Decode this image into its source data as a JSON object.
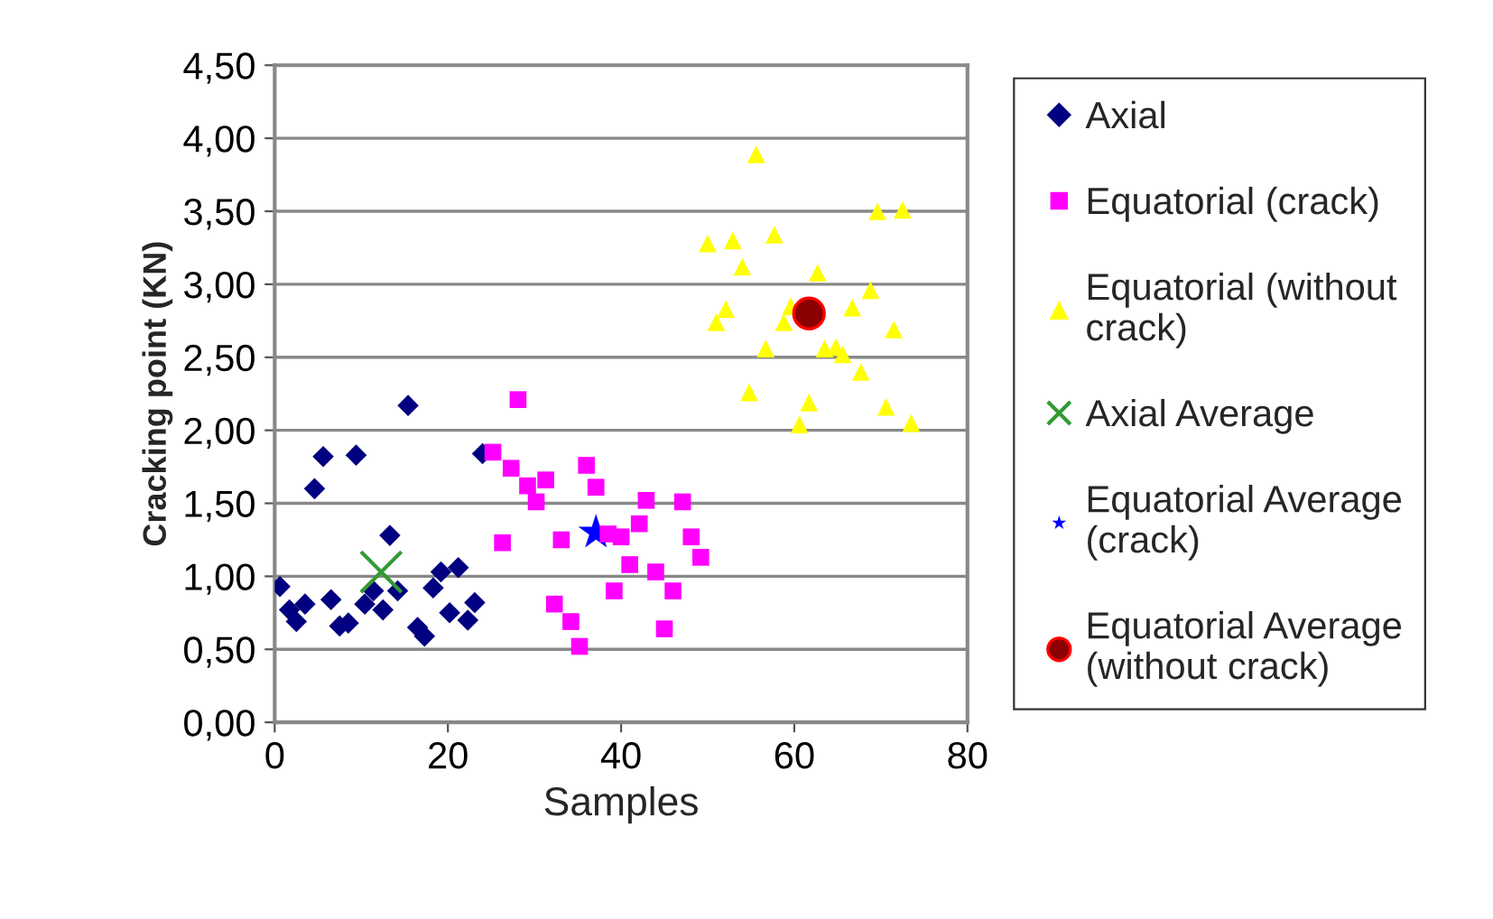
{
  "chart_data": {
    "type": "scatter",
    "xlabel": "Samples",
    "ylabel": "Cracking point (KN)",
    "xlim": [
      0,
      80
    ],
    "xticks": [
      0,
      20,
      40,
      60,
      80
    ],
    "ylim": [
      0,
      4.5
    ],
    "yticks": [
      {
        "value": 0,
        "label": "0,00"
      },
      {
        "value": 0.5,
        "label": "0,50"
      },
      {
        "value": 1,
        "label": "1,00"
      },
      {
        "value": 1.5,
        "label": "1,50"
      },
      {
        "value": 2,
        "label": "2,00"
      },
      {
        "value": 2.5,
        "label": "2,50"
      },
      {
        "value": 3,
        "label": "3,00"
      },
      {
        "value": 3.5,
        "label": "3,50"
      },
      {
        "value": 4,
        "label": "4,00"
      },
      {
        "value": 4.5,
        "label": "4,50"
      }
    ],
    "grid": "y",
    "legend": "right",
    "series": [
      {
        "name": "Axial",
        "color": "#000080",
        "marker": "diamond",
        "x": [
          0.6,
          1.7,
          2.5,
          3.5,
          4.6,
          5.6,
          6.5,
          7.5,
          8.5,
          9.4,
          10.4,
          11.4,
          12.5,
          13.3,
          14.2,
          15.4,
          16.5,
          17.3,
          18.3,
          19.2,
          20.2,
          21.2,
          22.3,
          23.1,
          24
        ],
        "values": [
          0.93,
          0.77,
          0.69,
          0.81,
          1.6,
          1.82,
          0.84,
          0.66,
          0.68,
          1.83,
          0.81,
          0.9,
          0.77,
          1.28,
          0.9,
          2.17,
          0.65,
          0.59,
          0.92,
          1.03,
          0.75,
          1.06,
          0.7,
          0.82,
          1.84
        ]
      },
      {
        "name": "Equatorial (crack)",
        "color": "#ff00ff",
        "marker": "square",
        "x": [
          25.2,
          26.3,
          27.3,
          28.1,
          29.2,
          30.2,
          31.3,
          32.3,
          33.1,
          34.2,
          35.2,
          36,
          37.1,
          38.5,
          39.2,
          40,
          41,
          42.1,
          42.9,
          44,
          45,
          46,
          47.1,
          48.1,
          49.2
        ],
        "values": [
          1.85,
          1.23,
          1.74,
          2.21,
          1.62,
          1.51,
          1.66,
          0.81,
          1.25,
          0.69,
          0.52,
          1.76,
          1.61,
          1.29,
          0.9,
          1.27,
          1.08,
          1.36,
          1.52,
          1.03,
          0.64,
          0.9,
          1.51,
          1.27,
          1.13
        ]
      },
      {
        "name": "Equatorial (without crack)",
        "color": "#ffff00",
        "marker": "triangle",
        "x": [
          50,
          51,
          52.1,
          52.9,
          54,
          54.8,
          55.6,
          56.7,
          57.7,
          58.8,
          59.6,
          60.6,
          61.7,
          62.7,
          63.5,
          64.8,
          65.6,
          66.7,
          67.7,
          68.8,
          69.6,
          70.6,
          71.5,
          72.5,
          73.5
        ],
        "values": [
          3.28,
          2.74,
          2.83,
          3.3,
          3.12,
          2.26,
          3.89,
          2.56,
          3.34,
          2.74,
          2.85,
          2.04,
          2.19,
          3.08,
          2.56,
          2.57,
          2.52,
          2.84,
          2.4,
          2.96,
          3.5,
          2.16,
          2.69,
          3.51,
          2.05
        ]
      },
      {
        "name": "Axial Average",
        "color": "#339933",
        "marker": "cross",
        "x": [
          12.3
        ],
        "values": [
          1.03
        ]
      },
      {
        "name": "Equatorial Average (crack)",
        "color": "#0000ff",
        "marker": "star",
        "x": [
          37.1
        ],
        "values": [
          1.3
        ]
      },
      {
        "name": "Equatorial Average (without crack)",
        "color": "#8b0000",
        "marker": "circle",
        "x": [
          61.7
        ],
        "values": [
          2.8
        ]
      }
    ]
  }
}
